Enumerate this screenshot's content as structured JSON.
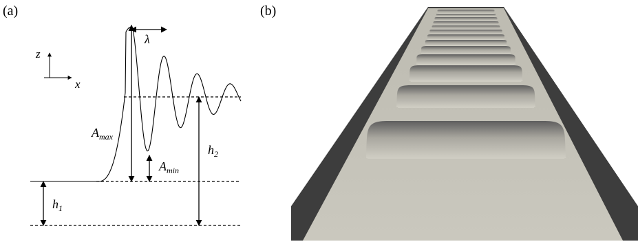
{
  "panel_a": {
    "label": "(a)",
    "axes": {
      "z": "z",
      "x": "x"
    },
    "symbols": {
      "lambda": "λ",
      "a_max_base": "A",
      "a_max_sub": "max",
      "a_min_base": "A",
      "a_min_sub": "min",
      "h2_base": "h",
      "h2_sub": "2",
      "h1_base": "h",
      "h1_sub": "1"
    }
  },
  "panel_b": {
    "label": "(b)",
    "colors": {
      "film": "#c9c7bd",
      "film_shadow": "#707070",
      "substrate": "#3d3d3d"
    }
  }
}
